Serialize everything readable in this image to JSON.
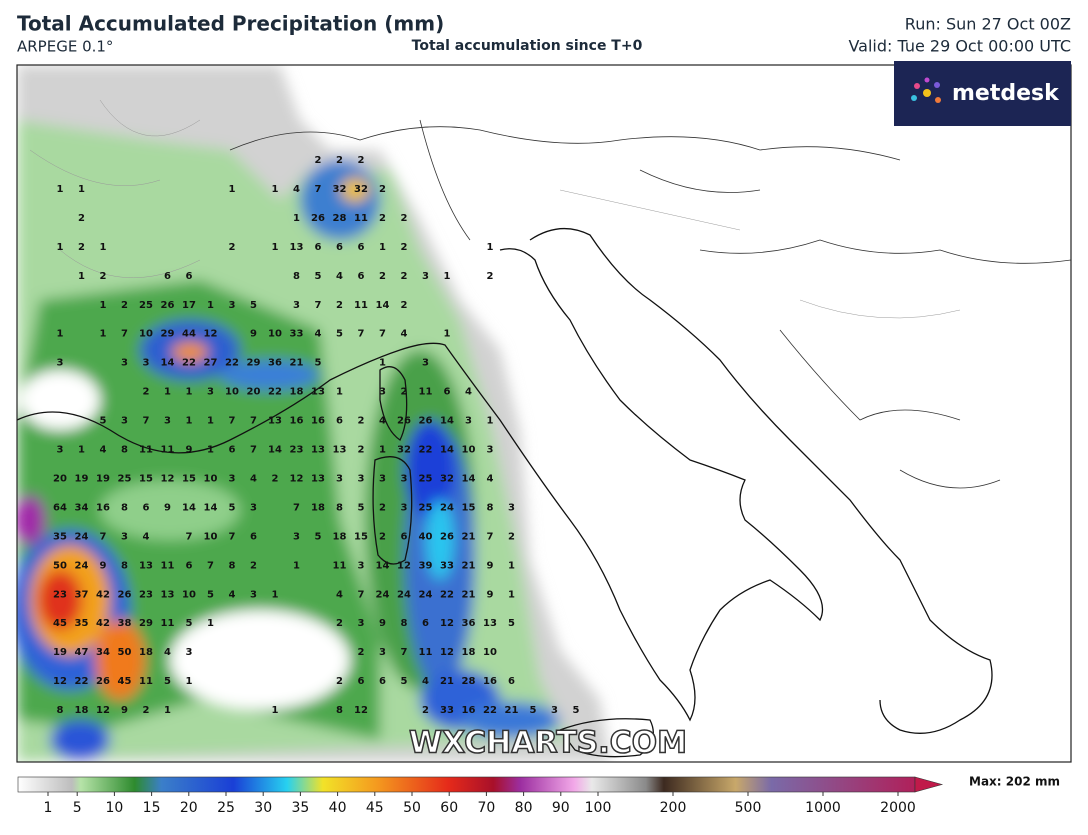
{
  "header": {
    "title": "Total Accumulated Precipitation (mm)",
    "model": "ARPEGE 0.1°",
    "subtitle": "Total accumulation since T+0",
    "run": "Run: Sun 27 Oct 00Z",
    "valid": "Valid: Tue 29 Oct 00:00 UTC"
  },
  "logo": "metdesk",
  "watermark": "WXCHARTS.COM",
  "map_values": {
    "rows": [
      [
        null,
        null,
        null,
        null,
        null,
        null,
        null,
        null,
        null,
        null,
        null,
        null,
        2,
        2,
        2
      ],
      [
        1,
        1,
        null,
        null,
        null,
        null,
        null,
        null,
        1,
        null,
        1,
        4,
        7,
        32,
        32,
        2
      ],
      [
        null,
        2,
        null,
        null,
        null,
        null,
        null,
        null,
        null,
        null,
        null,
        1,
        26,
        28,
        11,
        2,
        2
      ],
      [
        1,
        2,
        1,
        null,
        null,
        null,
        null,
        null,
        2,
        null,
        1,
        13,
        6,
        6,
        6,
        1,
        2,
        null,
        null,
        null,
        1
      ],
      [
        null,
        1,
        2,
        null,
        null,
        6,
        6,
        null,
        null,
        null,
        null,
        8,
        5,
        4,
        6,
        2,
        2,
        3,
        1,
        null,
        2
      ],
      [
        null,
        null,
        1,
        2,
        25,
        26,
        17,
        1,
        3,
        5,
        null,
        3,
        7,
        2,
        11,
        14,
        2
      ],
      [
        1,
        null,
        1,
        7,
        10,
        29,
        44,
        12,
        null,
        9,
        10,
        33,
        4,
        5,
        7,
        7,
        4,
        null,
        1
      ],
      [
        3,
        null,
        null,
        3,
        3,
        14,
        22,
        27,
        22,
        29,
        36,
        21,
        5,
        null,
        null,
        1,
        null,
        3
      ],
      [
        null,
        null,
        null,
        null,
        2,
        1,
        1,
        3,
        10,
        20,
        22,
        18,
        13,
        1,
        null,
        3,
        2,
        11,
        6,
        4
      ],
      [
        null,
        null,
        5,
        3,
        7,
        3,
        1,
        1,
        7,
        7,
        13,
        16,
        16,
        6,
        2,
        4,
        26,
        26,
        14,
        3,
        1
      ],
      [
        3,
        1,
        4,
        8,
        11,
        11,
        9,
        1,
        6,
        7,
        14,
        23,
        13,
        13,
        2,
        1,
        32,
        22,
        14,
        10,
        3
      ],
      [
        20,
        19,
        19,
        25,
        15,
        12,
        15,
        10,
        3,
        4,
        2,
        12,
        13,
        3,
        3,
        3,
        3,
        25,
        32,
        14,
        4
      ],
      [
        64,
        34,
        16,
        8,
        6,
        9,
        14,
        14,
        5,
        3,
        null,
        7,
        18,
        8,
        5,
        2,
        3,
        25,
        24,
        15,
        8,
        3
      ],
      [
        35,
        24,
        7,
        3,
        4,
        null,
        7,
        10,
        7,
        6,
        null,
        3,
        5,
        18,
        15,
        2,
        6,
        40,
        26,
        21,
        7,
        2
      ],
      [
        50,
        24,
        9,
        8,
        13,
        11,
        6,
        7,
        8,
        2,
        null,
        1,
        null,
        11,
        3,
        14,
        12,
        39,
        33,
        21,
        9,
        1
      ],
      [
        23,
        37,
        42,
        26,
        23,
        13,
        10,
        5,
        4,
        3,
        1,
        null,
        null,
        4,
        7,
        24,
        24,
        24,
        22,
        21,
        9,
        1
      ],
      [
        45,
        35,
        42,
        38,
        29,
        11,
        5,
        1,
        null,
        null,
        null,
        null,
        null,
        2,
        3,
        9,
        8,
        6,
        12,
        36,
        13,
        5
      ],
      [
        19,
        47,
        34,
        50,
        18,
        4,
        3,
        null,
        null,
        null,
        null,
        null,
        null,
        null,
        2,
        3,
        7,
        11,
        12,
        18,
        10
      ],
      [
        12,
        22,
        26,
        45,
        11,
        5,
        1,
        null,
        null,
        null,
        null,
        null,
        null,
        2,
        6,
        6,
        5,
        4,
        21,
        28,
        16,
        6
      ],
      [
        8,
        18,
        12,
        9,
        2,
        1,
        null,
        null,
        null,
        null,
        1,
        null,
        null,
        8,
        12,
        null,
        null,
        2,
        33,
        16,
        22,
        21,
        5,
        3,
        5
      ]
    ]
  },
  "colorbar": {
    "ticks": [
      1,
      5,
      10,
      15,
      20,
      25,
      30,
      35,
      40,
      45,
      50,
      60,
      70,
      80,
      90,
      100,
      200,
      500,
      1000,
      2000
    ],
    "max_label": "Max: 202 mm"
  }
}
